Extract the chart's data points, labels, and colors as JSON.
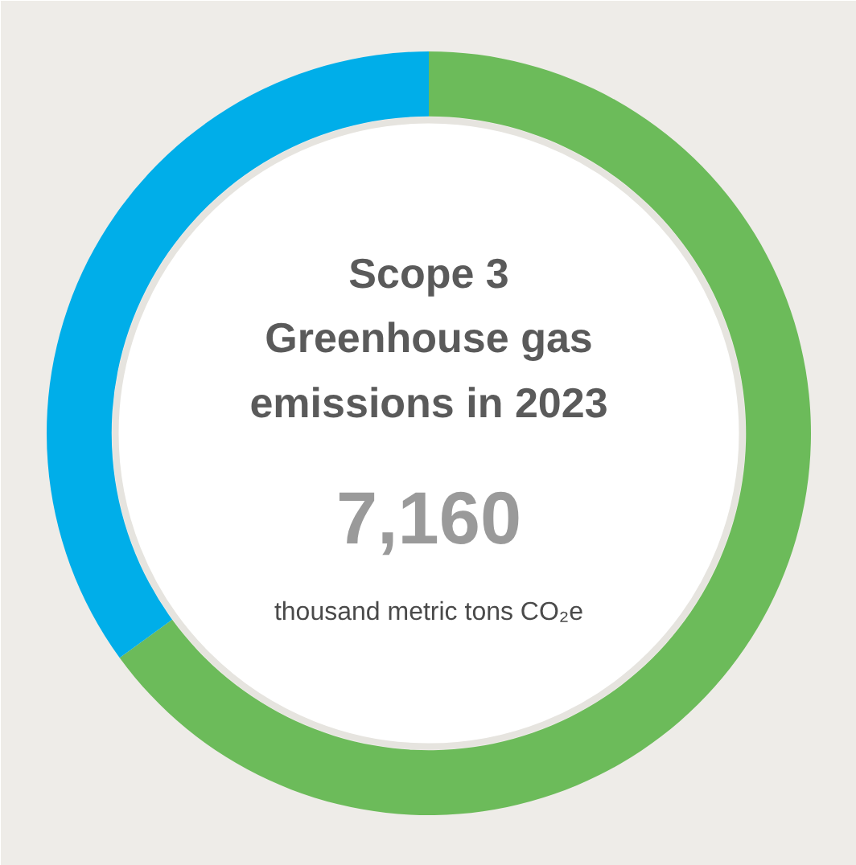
{
  "chart_data": {
    "type": "donut",
    "title": "Scope 3 Greenhouse gas emissions in 2023",
    "annotations": [
      "7,160",
      "thousand metric tons CO₂e"
    ],
    "categories": [
      null,
      null
    ],
    "values": [
      65,
      35
    ],
    "colors": [
      "#6cbb5a",
      "#00aee9"
    ]
  }
}
